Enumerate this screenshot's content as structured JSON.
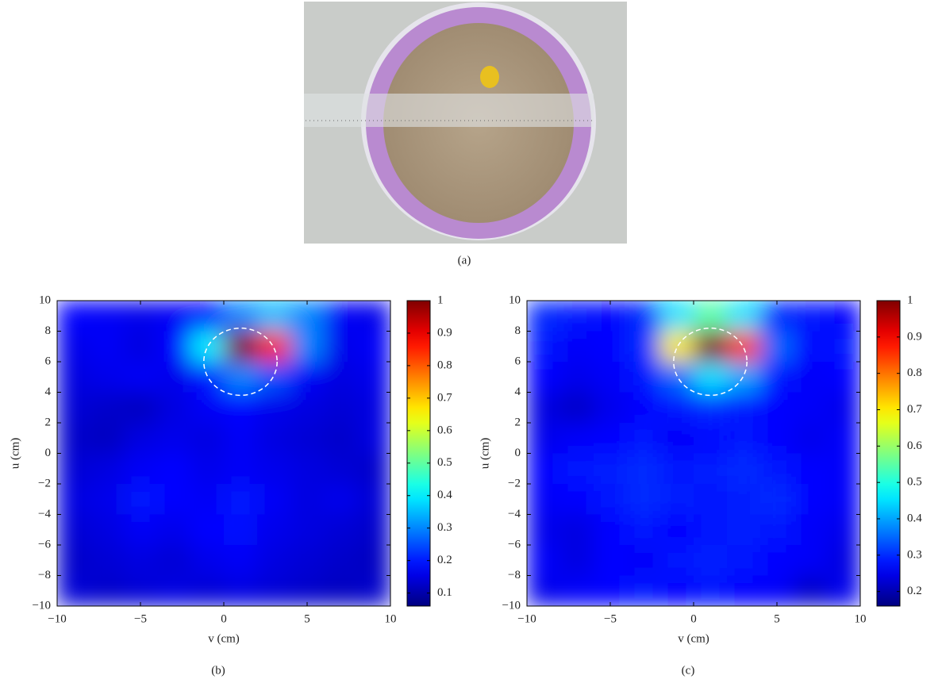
{
  "photo": {
    "caption": "(a)"
  },
  "chart_data": [
    {
      "type": "heatmap",
      "caption": "(b)",
      "xlabel": "v (cm)",
      "ylabel": "u (cm)",
      "xlim": [
        -10,
        10
      ],
      "ylim": [
        -10,
        10
      ],
      "xticks": [
        {
          "value": -10,
          "label": "−10"
        },
        {
          "value": -5,
          "label": "−5"
        },
        0,
        5,
        10
      ],
      "yticks": [
        {
          "value": -10,
          "label": "−10"
        },
        {
          "value": -8,
          "label": "−8"
        },
        {
          "value": -6,
          "label": "−6"
        },
        {
          "value": -4,
          "label": "−4"
        },
        {
          "value": -2,
          "label": "−2"
        },
        0,
        2,
        4,
        6,
        8,
        10
      ],
      "x": [
        -9,
        -7,
        -5,
        -3,
        -1,
        1,
        3,
        5,
        7,
        9
      ],
      "y": [
        9,
        7,
        5,
        3,
        1,
        -1,
        -3,
        -5,
        -7,
        -9
      ],
      "z": [
        [
          0.18,
          0.17,
          0.16,
          0.17,
          0.18,
          0.3,
          0.35,
          0.3,
          0.17,
          0.16
        ],
        [
          0.16,
          0.17,
          0.15,
          0.18,
          0.4,
          1.0,
          0.85,
          0.3,
          0.16,
          0.17
        ],
        [
          0.15,
          0.16,
          0.17,
          0.16,
          0.2,
          0.3,
          0.25,
          0.17,
          0.15,
          0.16
        ],
        [
          0.14,
          0.13,
          0.12,
          0.15,
          0.17,
          0.18,
          0.16,
          0.15,
          0.14,
          0.15
        ],
        [
          0.13,
          0.12,
          0.15,
          0.16,
          0.15,
          0.17,
          0.15,
          0.14,
          0.13,
          0.15
        ],
        [
          0.14,
          0.15,
          0.17,
          0.18,
          0.16,
          0.17,
          0.16,
          0.15,
          0.14,
          0.13
        ],
        [
          0.15,
          0.16,
          0.2,
          0.18,
          0.17,
          0.2,
          0.17,
          0.15,
          0.16,
          0.14
        ],
        [
          0.14,
          0.15,
          0.17,
          0.16,
          0.18,
          0.19,
          0.16,
          0.15,
          0.14,
          0.13
        ],
        [
          0.13,
          0.14,
          0.15,
          0.14,
          0.16,
          0.17,
          0.15,
          0.14,
          0.13,
          0.12
        ],
        [
          0.14,
          0.13,
          0.14,
          0.15,
          0.14,
          0.15,
          0.14,
          0.13,
          0.12,
          0.13
        ]
      ],
      "zlim": [
        0.06,
        1
      ],
      "zticks": [
        0.1,
        0.2,
        0.3,
        0.4,
        0.5,
        0.6,
        0.7,
        0.8,
        0.9,
        1
      ],
      "colormap": "jet",
      "target": {
        "x": 1,
        "y": 6,
        "r": 2.2
      }
    },
    {
      "type": "heatmap",
      "caption": "(c)",
      "xlabel": "v (cm)",
      "ylabel": "u (cm)",
      "xlim": [
        -10,
        10
      ],
      "ylim": [
        -10,
        10
      ],
      "xticks": [
        {
          "value": -10,
          "label": "−10"
        },
        {
          "value": -5,
          "label": "−5"
        },
        0,
        5,
        10
      ],
      "yticks": [
        {
          "value": -10,
          "label": "−10"
        },
        {
          "value": -8,
          "label": "−8"
        },
        {
          "value": -6,
          "label": "−6"
        },
        {
          "value": -4,
          "label": "−4"
        },
        {
          "value": -2,
          "label": "−2"
        },
        0,
        2,
        4,
        6,
        8,
        10
      ],
      "x": [
        -9,
        -7,
        -5,
        -3,
        -1,
        1,
        3,
        5,
        7,
        9
      ],
      "y": [
        9,
        7,
        5,
        3,
        1,
        -1,
        -3,
        -5,
        -7,
        -9
      ],
      "z": [
        [
          0.3,
          0.28,
          0.27,
          0.3,
          0.45,
          0.55,
          0.45,
          0.3,
          0.28,
          0.27
        ],
        [
          0.28,
          0.26,
          0.27,
          0.3,
          0.7,
          1.0,
          0.85,
          0.35,
          0.27,
          0.28
        ],
        [
          0.27,
          0.25,
          0.26,
          0.28,
          0.35,
          0.45,
          0.4,
          0.28,
          0.26,
          0.27
        ],
        [
          0.24,
          0.22,
          0.25,
          0.27,
          0.28,
          0.3,
          0.28,
          0.27,
          0.26,
          0.25
        ],
        [
          0.25,
          0.26,
          0.27,
          0.28,
          0.26,
          0.27,
          0.28,
          0.27,
          0.25,
          0.26
        ],
        [
          0.27,
          0.28,
          0.29,
          0.3,
          0.28,
          0.29,
          0.3,
          0.28,
          0.27,
          0.26
        ],
        [
          0.26,
          0.27,
          0.28,
          0.3,
          0.29,
          0.28,
          0.29,
          0.3,
          0.27,
          0.26
        ],
        [
          0.25,
          0.24,
          0.27,
          0.28,
          0.27,
          0.28,
          0.29,
          0.28,
          0.26,
          0.25
        ],
        [
          0.26,
          0.24,
          0.27,
          0.26,
          0.28,
          0.29,
          0.28,
          0.27,
          0.26,
          0.24
        ],
        [
          0.25,
          0.26,
          0.27,
          0.28,
          0.27,
          0.28,
          0.27,
          0.26,
          0.22,
          0.25
        ]
      ],
      "zlim": [
        0.16,
        1
      ],
      "zticks": [
        0.2,
        0.3,
        0.4,
        0.5,
        0.6,
        0.7,
        0.8,
        0.9,
        1
      ],
      "colormap": "jet",
      "target": {
        "x": 1,
        "y": 6,
        "r": 2.2
      }
    }
  ]
}
